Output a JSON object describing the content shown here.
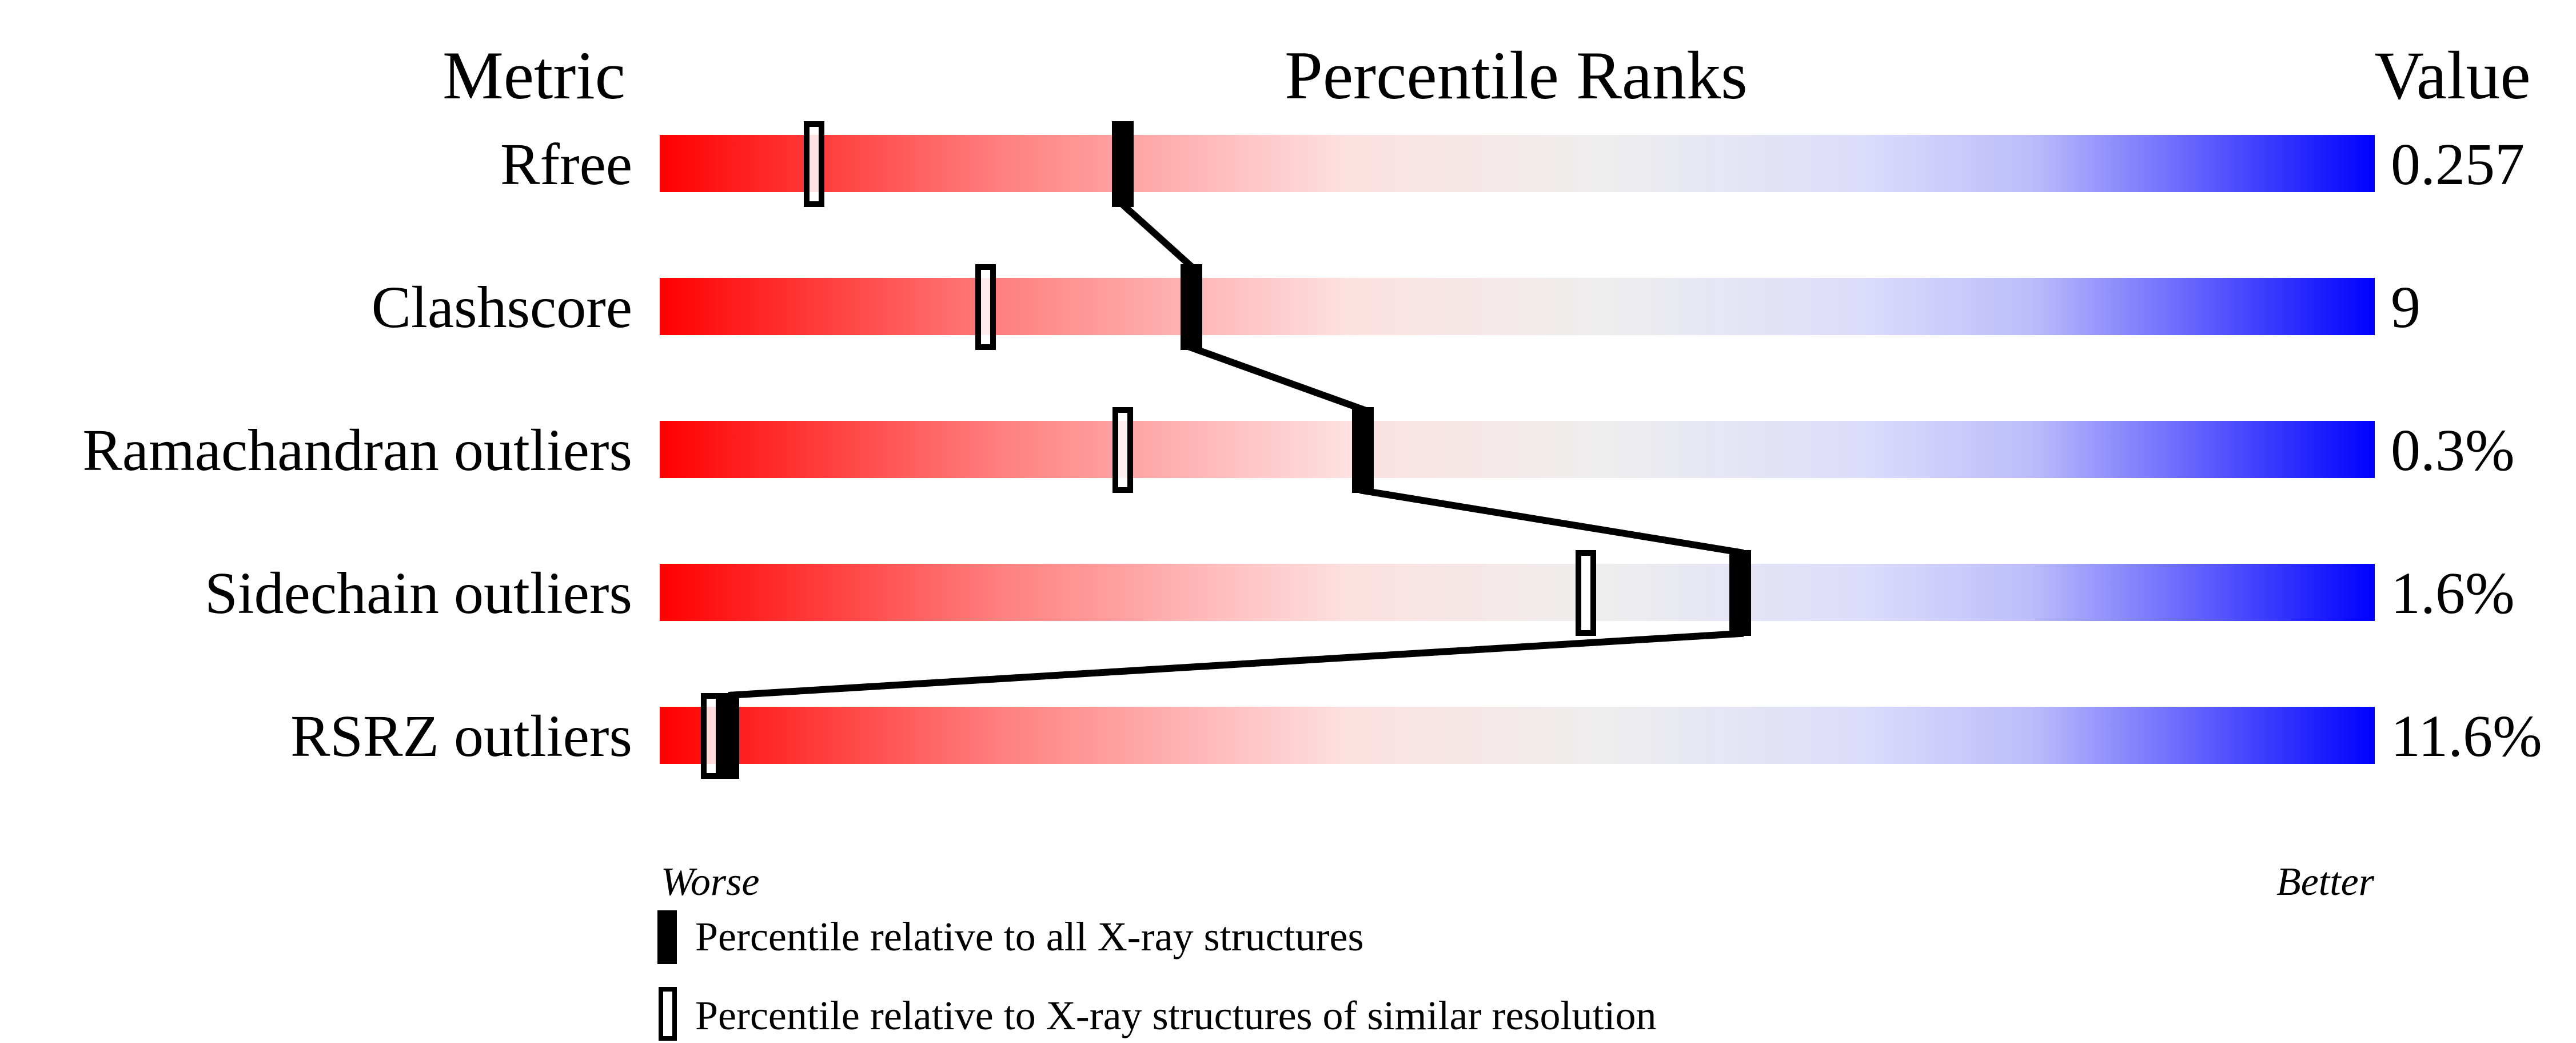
{
  "chart_data": {
    "type": "percentile-slider",
    "headers": {
      "metric": "Metric",
      "percentile": "Percentile Ranks",
      "value": "Value"
    },
    "axis": {
      "left_label": "Worse",
      "right_label": "Better",
      "range": [
        0,
        100
      ]
    },
    "gradient_colors": [
      "#ff0000",
      "#ff8080",
      "#fde0e0",
      "#eeeeee",
      "#dcdcfb",
      "#bcbcfb",
      "#0000ff"
    ],
    "metrics": [
      {
        "name": "Rfree",
        "value": "0.257",
        "percentile_all": 27,
        "percentile_similar": 9
      },
      {
        "name": "Clashscore",
        "value": "9",
        "percentile_all": 31,
        "percentile_similar": 19
      },
      {
        "name": "Ramachandran outliers",
        "value": "0.3%",
        "percentile_all": 41,
        "percentile_similar": 27
      },
      {
        "name": "Sidechain outliers",
        "value": "1.6%",
        "percentile_all": 63,
        "percentile_similar": 54
      },
      {
        "name": "RSRZ outliers",
        "value": "11.6%",
        "percentile_all": 4,
        "percentile_similar": 3
      }
    ],
    "legend": [
      {
        "marker": "filled",
        "label": "Percentile relative to all X-ray structures"
      },
      {
        "marker": "open",
        "label": "Percentile relative to X-ray structures of similar resolution"
      }
    ]
  }
}
